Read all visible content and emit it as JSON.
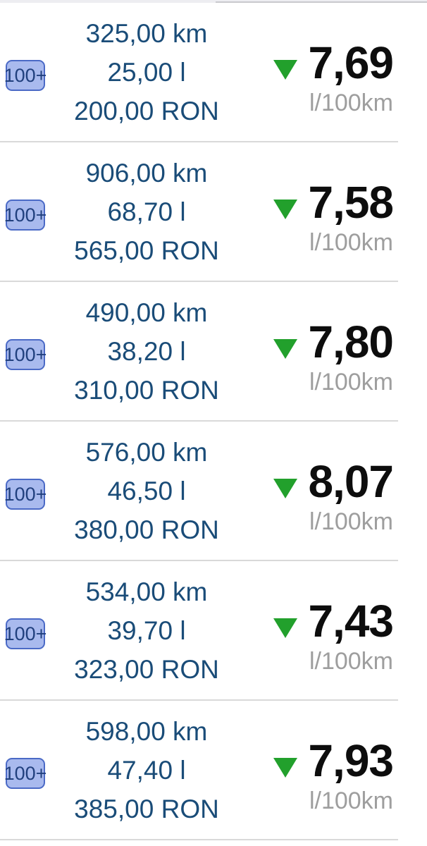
{
  "screen": {
    "background": "#ffffff"
  },
  "colors": {
    "primary_text_blue": "#1a4c78",
    "consumption_black": "#0d0d0d",
    "unit_gray": "#9e9e9e",
    "trend_green": "#22a02c",
    "badge_bg": "#a9baee",
    "badge_border": "#4b6ac6",
    "badge_text": "#21407e",
    "separator": "#d9d9d9"
  },
  "icons": {
    "trend_down": "▼"
  },
  "entries": [
    {
      "badge": "100+",
      "distance": "325,00 km",
      "fuel": "25,00 l",
      "cost": "200,00 RON",
      "trend": "down",
      "consumption": "7,69",
      "unit": "l/100km"
    },
    {
      "badge": "100+",
      "distance": "906,00 km",
      "fuel": "68,70 l",
      "cost": "565,00 RON",
      "trend": "down",
      "consumption": "7,58",
      "unit": "l/100km"
    },
    {
      "badge": "100+",
      "distance": "490,00 km",
      "fuel": "38,20 l",
      "cost": "310,00 RON",
      "trend": "down",
      "consumption": "7,80",
      "unit": "l/100km"
    },
    {
      "badge": "100+",
      "distance": "576,00 km",
      "fuel": "46,50 l",
      "cost": "380,00 RON",
      "trend": "down",
      "consumption": "8,07",
      "unit": "l/100km"
    },
    {
      "badge": "100+",
      "distance": "534,00 km",
      "fuel": "39,70 l",
      "cost": "323,00 RON",
      "trend": "down",
      "consumption": "7,43",
      "unit": "l/100km"
    },
    {
      "badge": "100+",
      "distance": "598,00 km",
      "fuel": "47,40 l",
      "cost": "385,00 RON",
      "trend": "down",
      "consumption": "7,93",
      "unit": "l/100km"
    }
  ]
}
